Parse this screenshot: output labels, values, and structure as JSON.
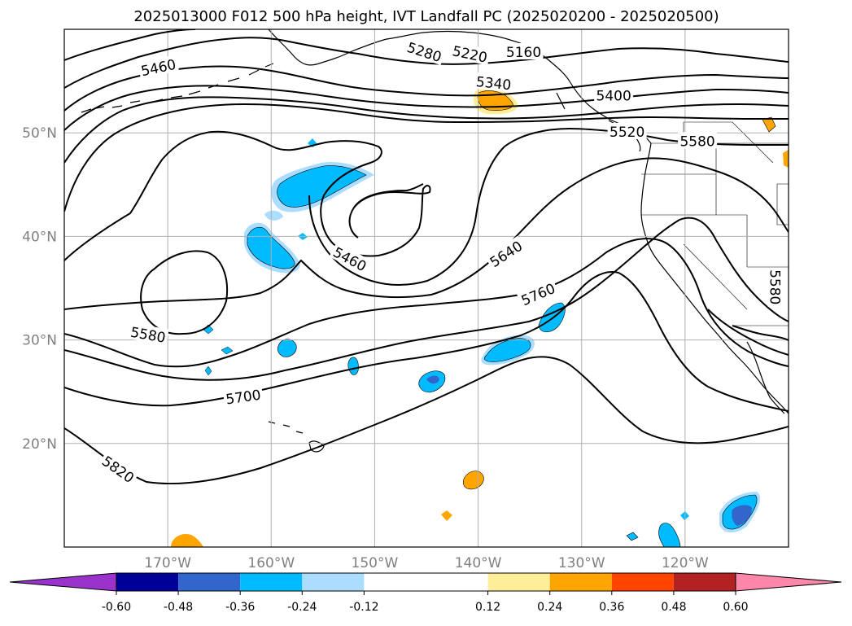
{
  "chart_data": {
    "type": "map",
    "title": "2025013000 F012 500 hPa height, IVT Landfall PC (2025020200 - 2025020500)",
    "projection": "PlateCarree",
    "extent": {
      "lon": [
        -180,
        -110
      ],
      "lat": [
        10,
        60
      ]
    },
    "grid": true,
    "lon_ticks": [
      {
        "lon": -170,
        "label": "170°W"
      },
      {
        "lon": -160,
        "label": "160°W"
      },
      {
        "lon": -150,
        "label": "150°W"
      },
      {
        "lon": -140,
        "label": "140°W"
      },
      {
        "lon": -130,
        "label": "130°W"
      },
      {
        "lon": -120,
        "label": "120°W"
      }
    ],
    "lat_ticks": [
      {
        "lat": 20,
        "label": "20°N"
      },
      {
        "lat": 30,
        "label": "30°N"
      },
      {
        "lat": 40,
        "label": "40°N"
      },
      {
        "lat": 50,
        "label": "50°N"
      }
    ],
    "contour_labels": [
      {
        "text": "5460",
        "lon": -170.9,
        "lat": 56.3,
        "angle": -12
      },
      {
        "text": "5280",
        "lon": -145.2,
        "lat": 57.8,
        "angle": 18
      },
      {
        "text": "5220",
        "lon": -140.8,
        "lat": 57.6,
        "angle": 12
      },
      {
        "text": "5160",
        "lon": -135.6,
        "lat": 57.8,
        "angle": 0
      },
      {
        "text": "5340",
        "lon": -138.5,
        "lat": 54.8,
        "angle": 6
      },
      {
        "text": "5400",
        "lon": -126.9,
        "lat": 53.6,
        "angle": 0
      },
      {
        "text": "5520",
        "lon": -125.6,
        "lat": 50.1,
        "angle": 0
      },
      {
        "text": "5580",
        "lon": -118.8,
        "lat": 49.2,
        "angle": 0
      },
      {
        "text": "5460",
        "lon": -152.4,
        "lat": 37.8,
        "angle": 28
      },
      {
        "text": "5640",
        "lon": -137.3,
        "lat": 38.3,
        "angle": -33
      },
      {
        "text": "5760",
        "lon": -134.2,
        "lat": 34.4,
        "angle": -23
      },
      {
        "text": "5580",
        "lon": -171.9,
        "lat": 30.5,
        "angle": 10
      },
      {
        "text": "5700",
        "lon": -162.7,
        "lat": 24.5,
        "angle": -8
      },
      {
        "text": "5820",
        "lon": -174.8,
        "lat": 17.5,
        "angle": 35
      },
      {
        "text": "5580",
        "lon": -111.3,
        "lat": 35.1,
        "angle": 90
      }
    ],
    "colorbar": {
      "ticks": [
        "-0.60",
        "-0.48",
        "-0.36",
        "-0.24",
        "-0.12",
        "0.12",
        "0.24",
        "0.36",
        "0.48",
        "0.60"
      ],
      "levels": [
        -0.6,
        -0.48,
        -0.36,
        -0.24,
        -0.12,
        0.12,
        0.24,
        0.36,
        0.48,
        0.6
      ],
      "under_color": "#9933cc",
      "colors": [
        "#000099",
        "#3366cc",
        "#00bbff",
        "#aaddff",
        "#ffffff",
        "#ffee99",
        "#ffa500",
        "#ff4400",
        "#b22222"
      ],
      "over_color": "#ff88aa",
      "extend": "both"
    }
  }
}
